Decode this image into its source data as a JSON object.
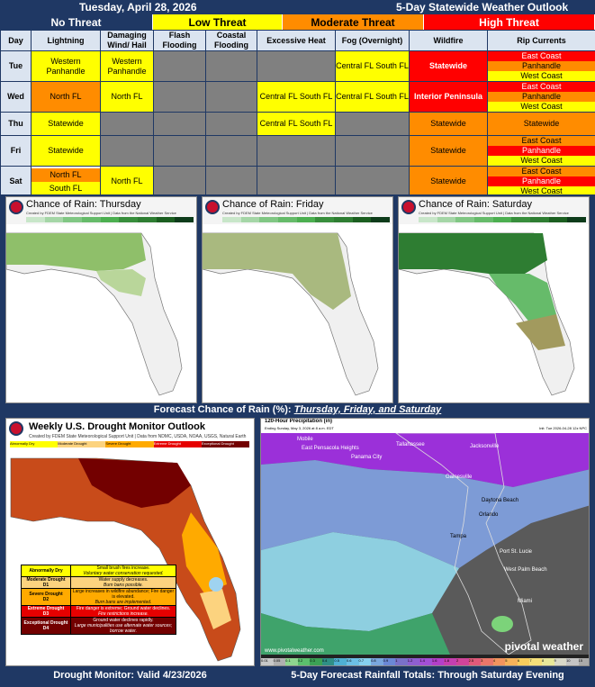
{
  "header": {
    "date": "Tuesday, April 28, 2026",
    "title": "5-Day Statewide Weather Outlook"
  },
  "legend": [
    {
      "label": "No Threat",
      "color": "#1f3864",
      "text_color": "#ffffff"
    },
    {
      "label": "Low Threat",
      "color": "#ffff00",
      "text_color": "#000000"
    },
    {
      "label": "Moderate Threat",
      "color": "#ff8c00",
      "text_color": "#000000"
    },
    {
      "label": "High Threat",
      "color": "#ff0000",
      "text_color": "#ffffff"
    }
  ],
  "columns": [
    "Day",
    "Lightning",
    "Damaging Wind/ Hail",
    "Flash Flooding",
    "Coastal Flooding",
    "Excessive Heat",
    "Fog (Overnight)",
    "Wildfire",
    "Rip Currents"
  ],
  "rows": [
    {
      "day": "Tue",
      "lightning": "Western Panhandle",
      "wind": "Western Panhandle",
      "flash": "",
      "coastal": "",
      "heat": "",
      "fog": "Central FL South FL",
      "wildfire": "Statewide",
      "rip": [
        "East Coast",
        "Panhandle",
        "West Coast"
      ]
    },
    {
      "day": "Wed",
      "lightning": "North FL",
      "wind": "North FL",
      "flash": "",
      "coastal": "",
      "heat": "Central FL South FL",
      "fog": "Central FL South FL",
      "wildfire": "Interior Peninsula",
      "rip": [
        "East Coast",
        "Panhandle",
        "West Coast"
      ]
    },
    {
      "day": "Thu",
      "lightning": "Statewide",
      "wind": "",
      "flash": "",
      "coastal": "",
      "heat": "Central FL South FL",
      "fog": "",
      "wildfire": "Statewide",
      "rip": [
        "Statewide"
      ]
    },
    {
      "day": "Fri",
      "lightning": "Statewide",
      "wind": "",
      "flash": "",
      "coastal": "",
      "heat": "",
      "fog": "",
      "wildfire": "Statewide",
      "rip": [
        "East Coast",
        "Panhandle",
        "West Coast"
      ]
    },
    {
      "day": "Sat",
      "lightning": "North FL South FL",
      "wind": "North FL",
      "flash": "",
      "coastal": "",
      "heat": "",
      "fog": "",
      "wildfire": "Statewide",
      "rip": [
        "East Coast",
        "Panhandle",
        "West Coast"
      ]
    }
  ],
  "rain_maps": {
    "panels": [
      {
        "title": "Chance of Rain: Thursday",
        "credit": "Created by FDEM State Meteorological Support Unit | Data from the National Weather Service"
      },
      {
        "title": "Chance of Rain: Friday",
        "credit": "Created by FDEM State Meteorological Support Unit | Data from the National Weather Service"
      },
      {
        "title": "Chance of Rain: Saturday",
        "credit": "Created by FDEM State Meteorological Support Unit | Data from the National Weather Service"
      }
    ],
    "scale": [
      "10%",
      "20%",
      "30%",
      "40%",
      "50%",
      "60%",
      "70%",
      "80%",
      "90%"
    ],
    "caption_prefix": "Forecast Chance of Rain (%): ",
    "caption_days": "Thursday, Friday, and Saturday"
  },
  "drought": {
    "title": "Weekly U.S. Drought Monitor Outlook",
    "credit": "Created by FDEM State Meteorological Support Unit | Data from NDMC, USDA, NOAA, USGS, Natural Earth",
    "categories": [
      {
        "name": "Abnormally Dry",
        "code": "",
        "impact": "Small brush fires increase.",
        "note": "Voluntary water conservation requested.",
        "color": "#ffff00"
      },
      {
        "name": "Moderate Drought",
        "code": "D1",
        "impact": "Water supply decreases.",
        "note": "Burn bans possible.",
        "color": "#fcd37f"
      },
      {
        "name": "Severe Drought",
        "code": "D2",
        "impact": "Large increases in wildfire abundance; Fire danger is elevated.",
        "note": "Burn bans are implemented.",
        "color": "#ffaa00"
      },
      {
        "name": "Extreme Drought",
        "code": "D3",
        "impact": "Fire danger is extreme; Ground water declines.",
        "note": "Fire restrictions increase.",
        "color": "#e60000"
      },
      {
        "name": "Exceptional Drought",
        "code": "D4",
        "impact": "Ground water declines rapidly.",
        "note": "Large municipalities use alternate water sources; borrow water.",
        "color": "#730000"
      }
    ],
    "caption": "Drought Monitor: Valid 4/23/2026"
  },
  "precip": {
    "title": "120-Hour Precipitation (in)",
    "subtitle": "Ending Sunday, May 3, 2026 at 8 a.m. EDT",
    "init": "Init: Tue 2026-04-28 12z NPC",
    "cities": [
      "Mobile",
      "East Pensacola Heights",
      "Panama City",
      "Tallahassee",
      "Jacksonville",
      "Gainesville",
      "Daytona Beach",
      "Orlando",
      "Port St. Lucie",
      "West Palm Beach",
      "Miami",
      "Tampa"
    ],
    "scale": [
      "0.01",
      "0.05",
      "0.1",
      "0.2",
      "0.3",
      "0.4",
      "0.5",
      "0.6",
      "0.7",
      "0.8",
      "0.9",
      "1",
      "1.2",
      "1.4",
      "1.6",
      "1.8",
      "2",
      "2.5",
      "3",
      "4",
      "5",
      "6",
      "7",
      "8",
      "9",
      "10",
      "15"
    ],
    "brand": "pivotal weather",
    "url": "www.pivotalweather.com",
    "caption": "5-Day Forecast Rainfall Totals: Through  Saturday Evening"
  }
}
